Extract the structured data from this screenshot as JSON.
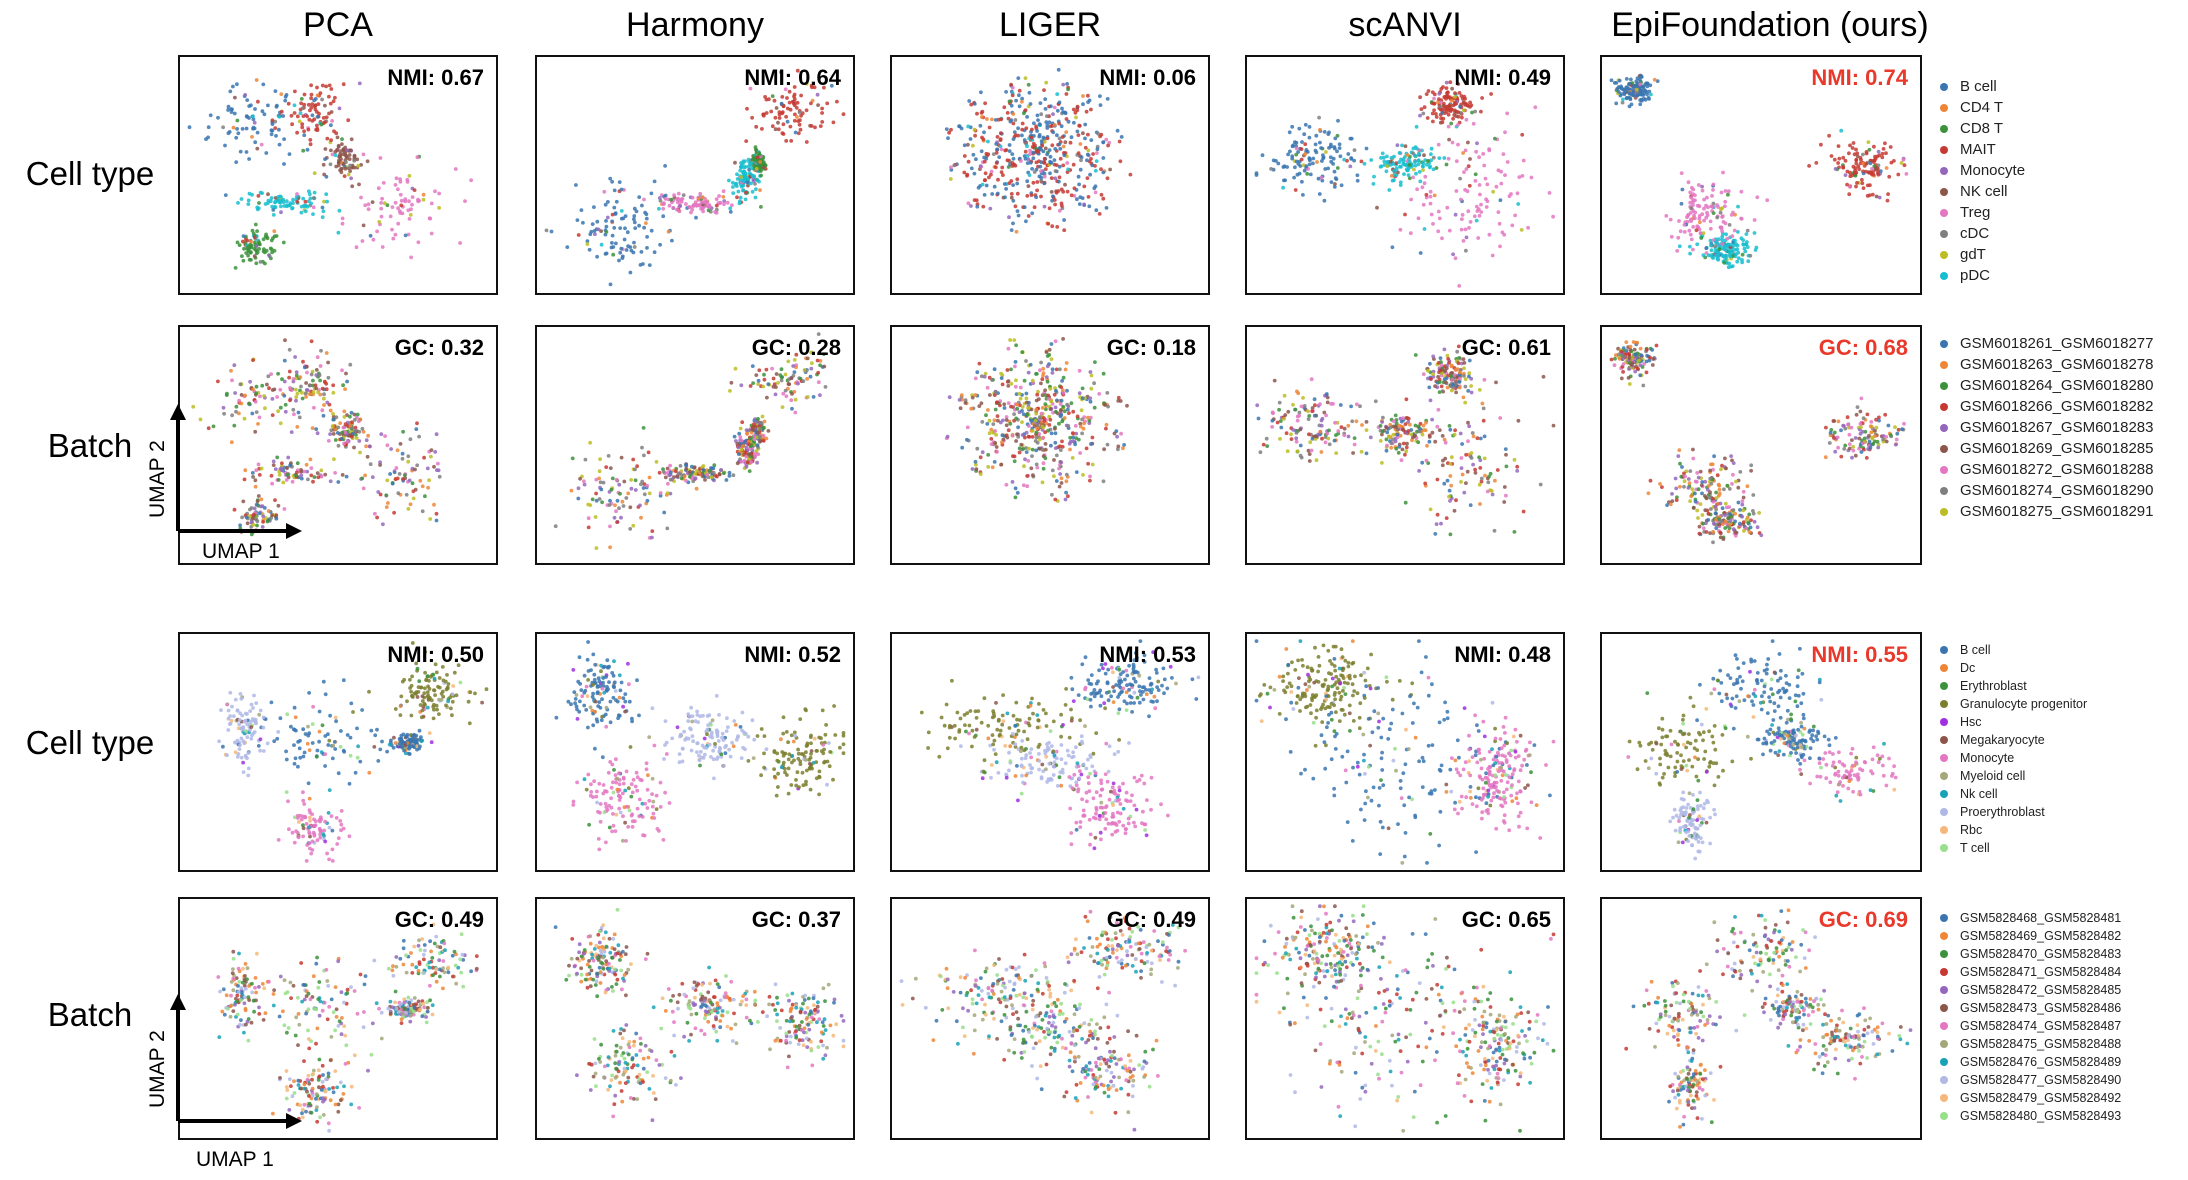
{
  "columns": [
    "PCA",
    "Harmony",
    "LIGER",
    "scANVI",
    "EpiFoundation (ours)"
  ],
  "axis": {
    "x_label": "UMAP 1",
    "y_label": "UMAP 2"
  },
  "best_color": "#e8392b",
  "chart_data": [
    {
      "type": "scatter",
      "dataset": 1,
      "row_label": "Cell type",
      "metric_name": "NMI",
      "metrics": [
        {
          "method": "PCA",
          "text": "NMI: 0.67",
          "value": 0.67,
          "best": false
        },
        {
          "method": "Harmony",
          "text": "NMI: 0.64",
          "value": 0.64,
          "best": false
        },
        {
          "method": "LIGER",
          "text": "NMI: 0.06",
          "value": 0.06,
          "best": false
        },
        {
          "method": "scANVI",
          "text": "NMI: 0.49",
          "value": 0.49,
          "best": false
        },
        {
          "method": "EpiFoundation (ours)",
          "text": "NMI: 0.74",
          "value": 0.74,
          "best": true
        }
      ],
      "legend": [
        {
          "label": "B cell",
          "color": "#3a75b0"
        },
        {
          "label": "CD4 T",
          "color": "#ef8636"
        },
        {
          "label": "CD8 T",
          "color": "#3b923b"
        },
        {
          "label": "MAIT",
          "color": "#c53932"
        },
        {
          "label": "Monocyte",
          "color": "#9467bd"
        },
        {
          "label": "NK cell",
          "color": "#8c564b"
        },
        {
          "label": "Treg",
          "color": "#e377c2"
        },
        {
          "label": "cDC",
          "color": "#7f7f7f"
        },
        {
          "label": "gdT",
          "color": "#bcbd22"
        },
        {
          "label": "pDC",
          "color": "#17becf"
        }
      ]
    },
    {
      "type": "scatter",
      "dataset": 1,
      "row_label": "Batch",
      "metric_name": "GC",
      "metrics": [
        {
          "method": "PCA",
          "text": "GC: 0.32",
          "value": 0.32,
          "best": false
        },
        {
          "method": "Harmony",
          "text": "GC: 0.28",
          "value": 0.28,
          "best": false
        },
        {
          "method": "LIGER",
          "text": "GC: 0.18",
          "value": 0.18,
          "best": false
        },
        {
          "method": "scANVI",
          "text": "GC: 0.61",
          "value": 0.61,
          "best": false
        },
        {
          "method": "EpiFoundation (ours)",
          "text": "GC: 0.68",
          "value": 0.68,
          "best": true
        }
      ],
      "legend": [
        {
          "label": "GSM6018261_GSM6018277",
          "color": "#3a75b0"
        },
        {
          "label": "GSM6018263_GSM6018278",
          "color": "#ef8636"
        },
        {
          "label": "GSM6018264_GSM6018280",
          "color": "#3b923b"
        },
        {
          "label": "GSM6018266_GSM6018282",
          "color": "#c53932"
        },
        {
          "label": "GSM6018267_GSM6018283",
          "color": "#9467bd"
        },
        {
          "label": "GSM6018269_GSM6018285",
          "color": "#8c564b"
        },
        {
          "label": "GSM6018272_GSM6018288",
          "color": "#e377c2"
        },
        {
          "label": "GSM6018274_GSM6018290",
          "color": "#7f7f7f"
        },
        {
          "label": "GSM6018275_GSM6018291",
          "color": "#bcbd22"
        }
      ]
    },
    {
      "type": "scatter",
      "dataset": 2,
      "row_label": "Cell type",
      "metric_name": "NMI",
      "metrics": [
        {
          "method": "PCA",
          "text": "NMI: 0.50",
          "value": 0.5,
          "best": false
        },
        {
          "method": "Harmony",
          "text": "NMI: 0.52",
          "value": 0.52,
          "best": false
        },
        {
          "method": "LIGER",
          "text": "NMI: 0.53",
          "value": 0.53,
          "best": false
        },
        {
          "method": "scANVI",
          "text": "NMI: 0.48",
          "value": 0.48,
          "best": false
        },
        {
          "method": "EpiFoundation (ours)",
          "text": "NMI: 0.55",
          "value": 0.55,
          "best": true
        }
      ],
      "legend": [
        {
          "label": "B cell",
          "color": "#3a75b0"
        },
        {
          "label": "Dc",
          "color": "#ef8636"
        },
        {
          "label": "Erythroblast",
          "color": "#3b923b"
        },
        {
          "label": "Granulocyte progenitor",
          "color": "#7b7f2e"
        },
        {
          "label": "Hsc",
          "color": "#a12fe0"
        },
        {
          "label": "Megakaryocyte",
          "color": "#8c564b"
        },
        {
          "label": "Monocyte",
          "color": "#e377c2"
        },
        {
          "label": "Myeloid cell",
          "color": "#a4a77a"
        },
        {
          "label": "Nk cell",
          "color": "#17a2b8"
        },
        {
          "label": "Proerythroblast",
          "color": "#b0b8e6"
        },
        {
          "label": "Rbc",
          "color": "#f5b87a"
        },
        {
          "label": "T cell",
          "color": "#98df8a"
        }
      ]
    },
    {
      "type": "scatter",
      "dataset": 2,
      "row_label": "Batch",
      "metric_name": "GC",
      "metrics": [
        {
          "method": "PCA",
          "text": "GC: 0.49",
          "value": 0.49,
          "best": false
        },
        {
          "method": "Harmony",
          "text": "GC: 0.37",
          "value": 0.37,
          "best": false
        },
        {
          "method": "LIGER",
          "text": "GC: 0.49",
          "value": 0.49,
          "best": false
        },
        {
          "method": "scANVI",
          "text": "GC: 0.65",
          "value": 0.65,
          "best": false
        },
        {
          "method": "EpiFoundation (ours)",
          "text": "GC: 0.69",
          "value": 0.69,
          "best": true
        }
      ],
      "legend": [
        {
          "label": "GSM5828468_GSM5828481",
          "color": "#3a75b0"
        },
        {
          "label": "GSM5828469_GSM5828482",
          "color": "#ef8636"
        },
        {
          "label": "GSM5828470_GSM5828483",
          "color": "#3b923b"
        },
        {
          "label": "GSM5828471_GSM5828484",
          "color": "#c53932"
        },
        {
          "label": "GSM5828472_GSM5828485",
          "color": "#9467bd"
        },
        {
          "label": "GSM5828473_GSM5828486",
          "color": "#8c564b"
        },
        {
          "label": "GSM5828474_GSM5828487",
          "color": "#e377c2"
        },
        {
          "label": "GSM5828475_GSM5828488",
          "color": "#a4a77a"
        },
        {
          "label": "GSM5828476_GSM5828489",
          "color": "#17a2b8"
        },
        {
          "label": "GSM5828477_GSM5828490",
          "color": "#b0b8e6"
        },
        {
          "label": "GSM5828479_GSM5828492",
          "color": "#f5b87a"
        },
        {
          "label": "GSM5828480_GSM5828493",
          "color": "#98df8a"
        }
      ]
    }
  ]
}
